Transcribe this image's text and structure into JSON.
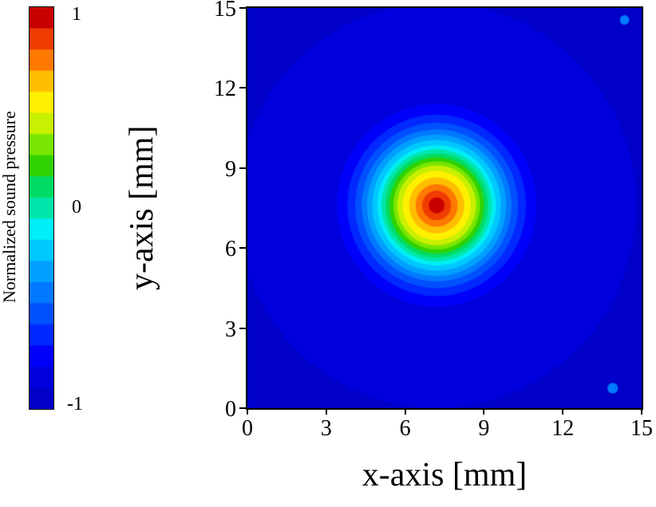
{
  "chart_data": {
    "type": "heatmap",
    "title": "",
    "xlabel": "x-axis [mm]",
    "ylabel": "y-axis [mm]",
    "xlim": [
      0,
      15
    ],
    "ylim": [
      0,
      15
    ],
    "xticks": [
      "0",
      "3",
      "6",
      "9",
      "12",
      "15"
    ],
    "yticks": [
      "0",
      "3",
      "6",
      "9",
      "12",
      "15"
    ],
    "grid": false,
    "colorbar": {
      "label": "Normalized sound pressure",
      "tick_labels": [
        "1",
        "0",
        "-1"
      ],
      "range": [
        -1,
        1
      ],
      "position": "left"
    },
    "colormap": [
      "#0000C8",
      "#0000DC",
      "#0000FA",
      "#0028FF",
      "#0050FF",
      "#0078FF",
      "#00A0FF",
      "#00C8FF",
      "#00EEF5",
      "#00E6AA",
      "#00DC64",
      "#30D200",
      "#78E600",
      "#C8F000",
      "#FFF000",
      "#FFBE00",
      "#FF7800",
      "#F03C00",
      "#C80000"
    ],
    "field": {
      "center_mm": [
        7.2,
        7.6
      ],
      "base_color_index": 0,
      "rings": [
        {
          "r": 7.6,
          "ci": 1
        },
        {
          "r": 3.8,
          "ci": 2
        },
        {
          "r": 3.4,
          "ci": 3
        },
        {
          "r": 3.1,
          "ci": 4
        },
        {
          "r": 2.85,
          "ci": 5
        },
        {
          "r": 2.65,
          "ci": 6
        },
        {
          "r": 2.45,
          "ci": 7
        },
        {
          "r": 2.25,
          "ci": 8
        },
        {
          "r": 2.1,
          "ci": 9
        },
        {
          "r": 1.95,
          "ci": 10
        },
        {
          "r": 1.8,
          "ci": 11
        },
        {
          "r": 1.65,
          "ci": 12
        },
        {
          "r": 1.5,
          "ci": 13
        },
        {
          "r": 1.3,
          "ci": 14
        },
        {
          "r": 1.05,
          "ci": 15
        },
        {
          "r": 0.8,
          "ci": 16
        },
        {
          "r": 0.55,
          "ci": 17
        },
        {
          "r": 0.3,
          "ci": 18
        }
      ],
      "specks": [
        {
          "x": 14.35,
          "y": 14.55,
          "r": 0.18,
          "ci": 5
        },
        {
          "x": 13.9,
          "y": 0.75,
          "r": 0.2,
          "ci": 5
        }
      ]
    }
  }
}
